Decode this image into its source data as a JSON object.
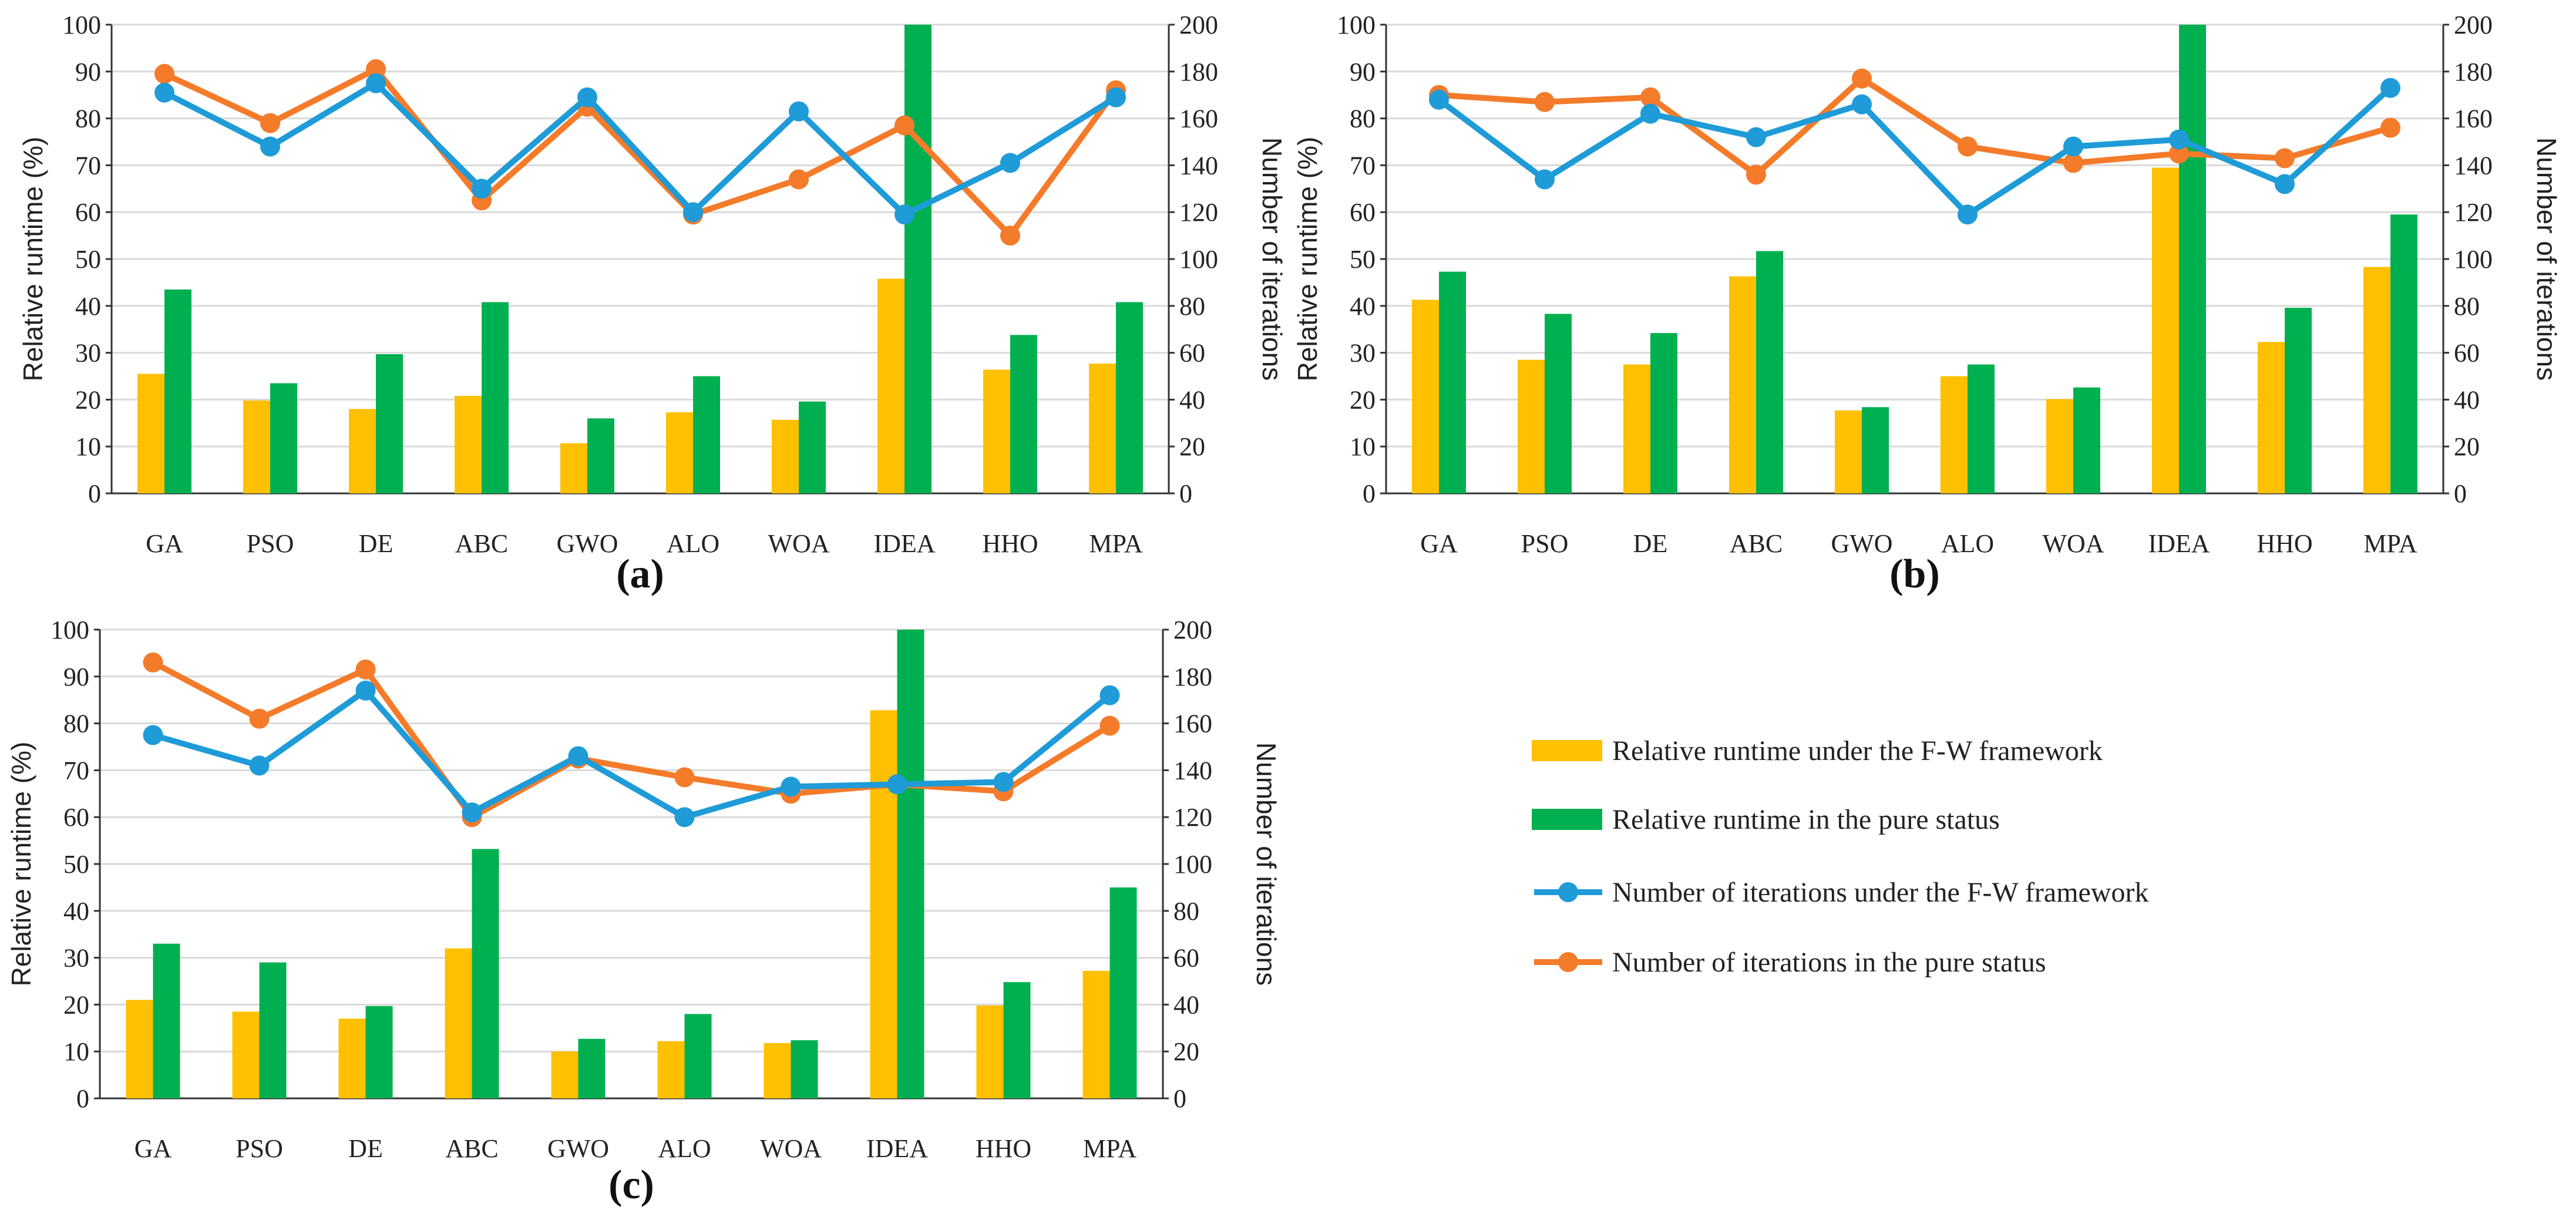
{
  "legend": {
    "items": [
      {
        "label": "Relative runtime under the F-W framework",
        "kind": "bar",
        "color": "#FFC000"
      },
      {
        "label": "Relative runtime in the pure status",
        "kind": "bar",
        "color": "#00B050"
      },
      {
        "label": "Number of iterations under the F-W framework",
        "kind": "line",
        "color": "#1F9BD7"
      },
      {
        "label": "Number of iterations in the pure status",
        "kind": "line",
        "color": "#F47B2A"
      }
    ]
  },
  "chart_data": [
    {
      "panel": "(a)",
      "type": "bar+line",
      "categories": [
        "GA",
        "PSO",
        "DE",
        "ABC",
        "GWO",
        "ALO",
        "WOA",
        "IDEA",
        "HHO",
        "MPA"
      ],
      "ylabel": "Relative runtime (%)",
      "y2label": "Number of iterations",
      "ylim": [
        0,
        100
      ],
      "y2lim": [
        0,
        200
      ],
      "yticks": [
        0,
        10,
        20,
        30,
        40,
        50,
        60,
        70,
        80,
        90,
        100
      ],
      "y2ticks": [
        0,
        20,
        40,
        60,
        80,
        100,
        120,
        140,
        160,
        180,
        200
      ],
      "grid": true,
      "series": [
        {
          "name": "Relative runtime under the F-W framework",
          "kind": "bar",
          "axis": "left",
          "color": "#FFC000",
          "values": [
            25.5,
            19.8,
            18,
            20.8,
            10.7,
            17.3,
            15.7,
            45.8,
            26.4,
            27.7
          ]
        },
        {
          "name": "Relative runtime in the pure status",
          "kind": "bar",
          "axis": "left",
          "color": "#00B050",
          "values": [
            43.5,
            23.5,
            29.7,
            40.8,
            16,
            25,
            19.6,
            100,
            33.8,
            40.8
          ]
        },
        {
          "name": "Number of iterations under the F-W framework",
          "kind": "line",
          "axis": "right",
          "color": "#1F9BD7",
          "values": [
            171,
            148,
            175,
            130,
            169,
            120,
            163,
            119,
            141,
            169
          ]
        },
        {
          "name": "Number of iterations in the pure status",
          "kind": "line",
          "axis": "right",
          "color": "#F47B2A",
          "values": [
            179,
            158,
            181,
            125,
            165,
            119,
            134,
            157,
            110,
            172
          ]
        }
      ]
    },
    {
      "panel": "(b)",
      "type": "bar+line",
      "categories": [
        "GA",
        "PSO",
        "DE",
        "ABC",
        "GWO",
        "ALO",
        "WOA",
        "IDEA",
        "HHO",
        "MPA"
      ],
      "ylabel": "Relative runtime (%)",
      "y2label": "Number of iterations",
      "ylim": [
        0,
        100
      ],
      "y2lim": [
        0,
        200
      ],
      "yticks": [
        0,
        10,
        20,
        30,
        40,
        50,
        60,
        70,
        80,
        90,
        100
      ],
      "y2ticks": [
        0,
        20,
        40,
        60,
        80,
        100,
        120,
        140,
        160,
        180,
        200
      ],
      "grid": true,
      "series": [
        {
          "name": "Relative runtime under the F-W framework",
          "kind": "bar",
          "axis": "left",
          "color": "#FFC000",
          "values": [
            41.3,
            28.5,
            27.5,
            46.3,
            17.7,
            25,
            20.1,
            69.5,
            32.3,
            48.3
          ]
        },
        {
          "name": "Relative runtime in the pure status",
          "kind": "bar",
          "axis": "left",
          "color": "#00B050",
          "values": [
            47.3,
            38.3,
            34.2,
            51.7,
            18.4,
            27.5,
            22.6,
            100,
            39.6,
            59.5
          ]
        },
        {
          "name": "Number of iterations under the F-W framework",
          "kind": "line",
          "axis": "right",
          "color": "#1F9BD7",
          "values": [
            168,
            134,
            162,
            152,
            166,
            119,
            148,
            151,
            132,
            173
          ]
        },
        {
          "name": "Number of iterations in the pure status",
          "kind": "line",
          "axis": "right",
          "color": "#F47B2A",
          "values": [
            170,
            167,
            169,
            136,
            177,
            148,
            141,
            145,
            143,
            156
          ]
        }
      ]
    },
    {
      "panel": "(c)",
      "type": "bar+line",
      "categories": [
        "GA",
        "PSO",
        "DE",
        "ABC",
        "GWO",
        "ALO",
        "WOA",
        "IDEA",
        "HHO",
        "MPA"
      ],
      "ylabel": "Relative runtime (%)",
      "y2label": "Number of iterations",
      "ylim": [
        0,
        100
      ],
      "y2lim": [
        0,
        200
      ],
      "yticks": [
        0,
        10,
        20,
        30,
        40,
        50,
        60,
        70,
        80,
        90,
        100
      ],
      "y2ticks": [
        0,
        20,
        40,
        60,
        80,
        100,
        120,
        140,
        160,
        180,
        200
      ],
      "grid": true,
      "series": [
        {
          "name": "Relative runtime under the F-W framework",
          "kind": "bar",
          "axis": "left",
          "color": "#FFC000",
          "values": [
            21,
            18.5,
            17,
            32,
            10,
            12.2,
            11.8,
            82.8,
            19.8,
            27.2
          ]
        },
        {
          "name": "Relative runtime in the pure status",
          "kind": "bar",
          "axis": "left",
          "color": "#00B050",
          "values": [
            33,
            29,
            19.7,
            53.2,
            12.7,
            18,
            12.4,
            100,
            24.8,
            45
          ]
        },
        {
          "name": "Number of iterations under the F-W framework",
          "kind": "line",
          "axis": "right",
          "color": "#1F9BD7",
          "values": [
            155,
            142,
            174,
            122,
            146,
            120,
            133,
            134,
            135,
            172
          ]
        },
        {
          "name": "Number of iterations in the pure status",
          "kind": "line",
          "axis": "right",
          "color": "#F47B2A",
          "values": [
            186,
            162,
            183,
            120,
            145,
            137,
            130,
            134,
            131,
            159
          ]
        }
      ]
    }
  ]
}
